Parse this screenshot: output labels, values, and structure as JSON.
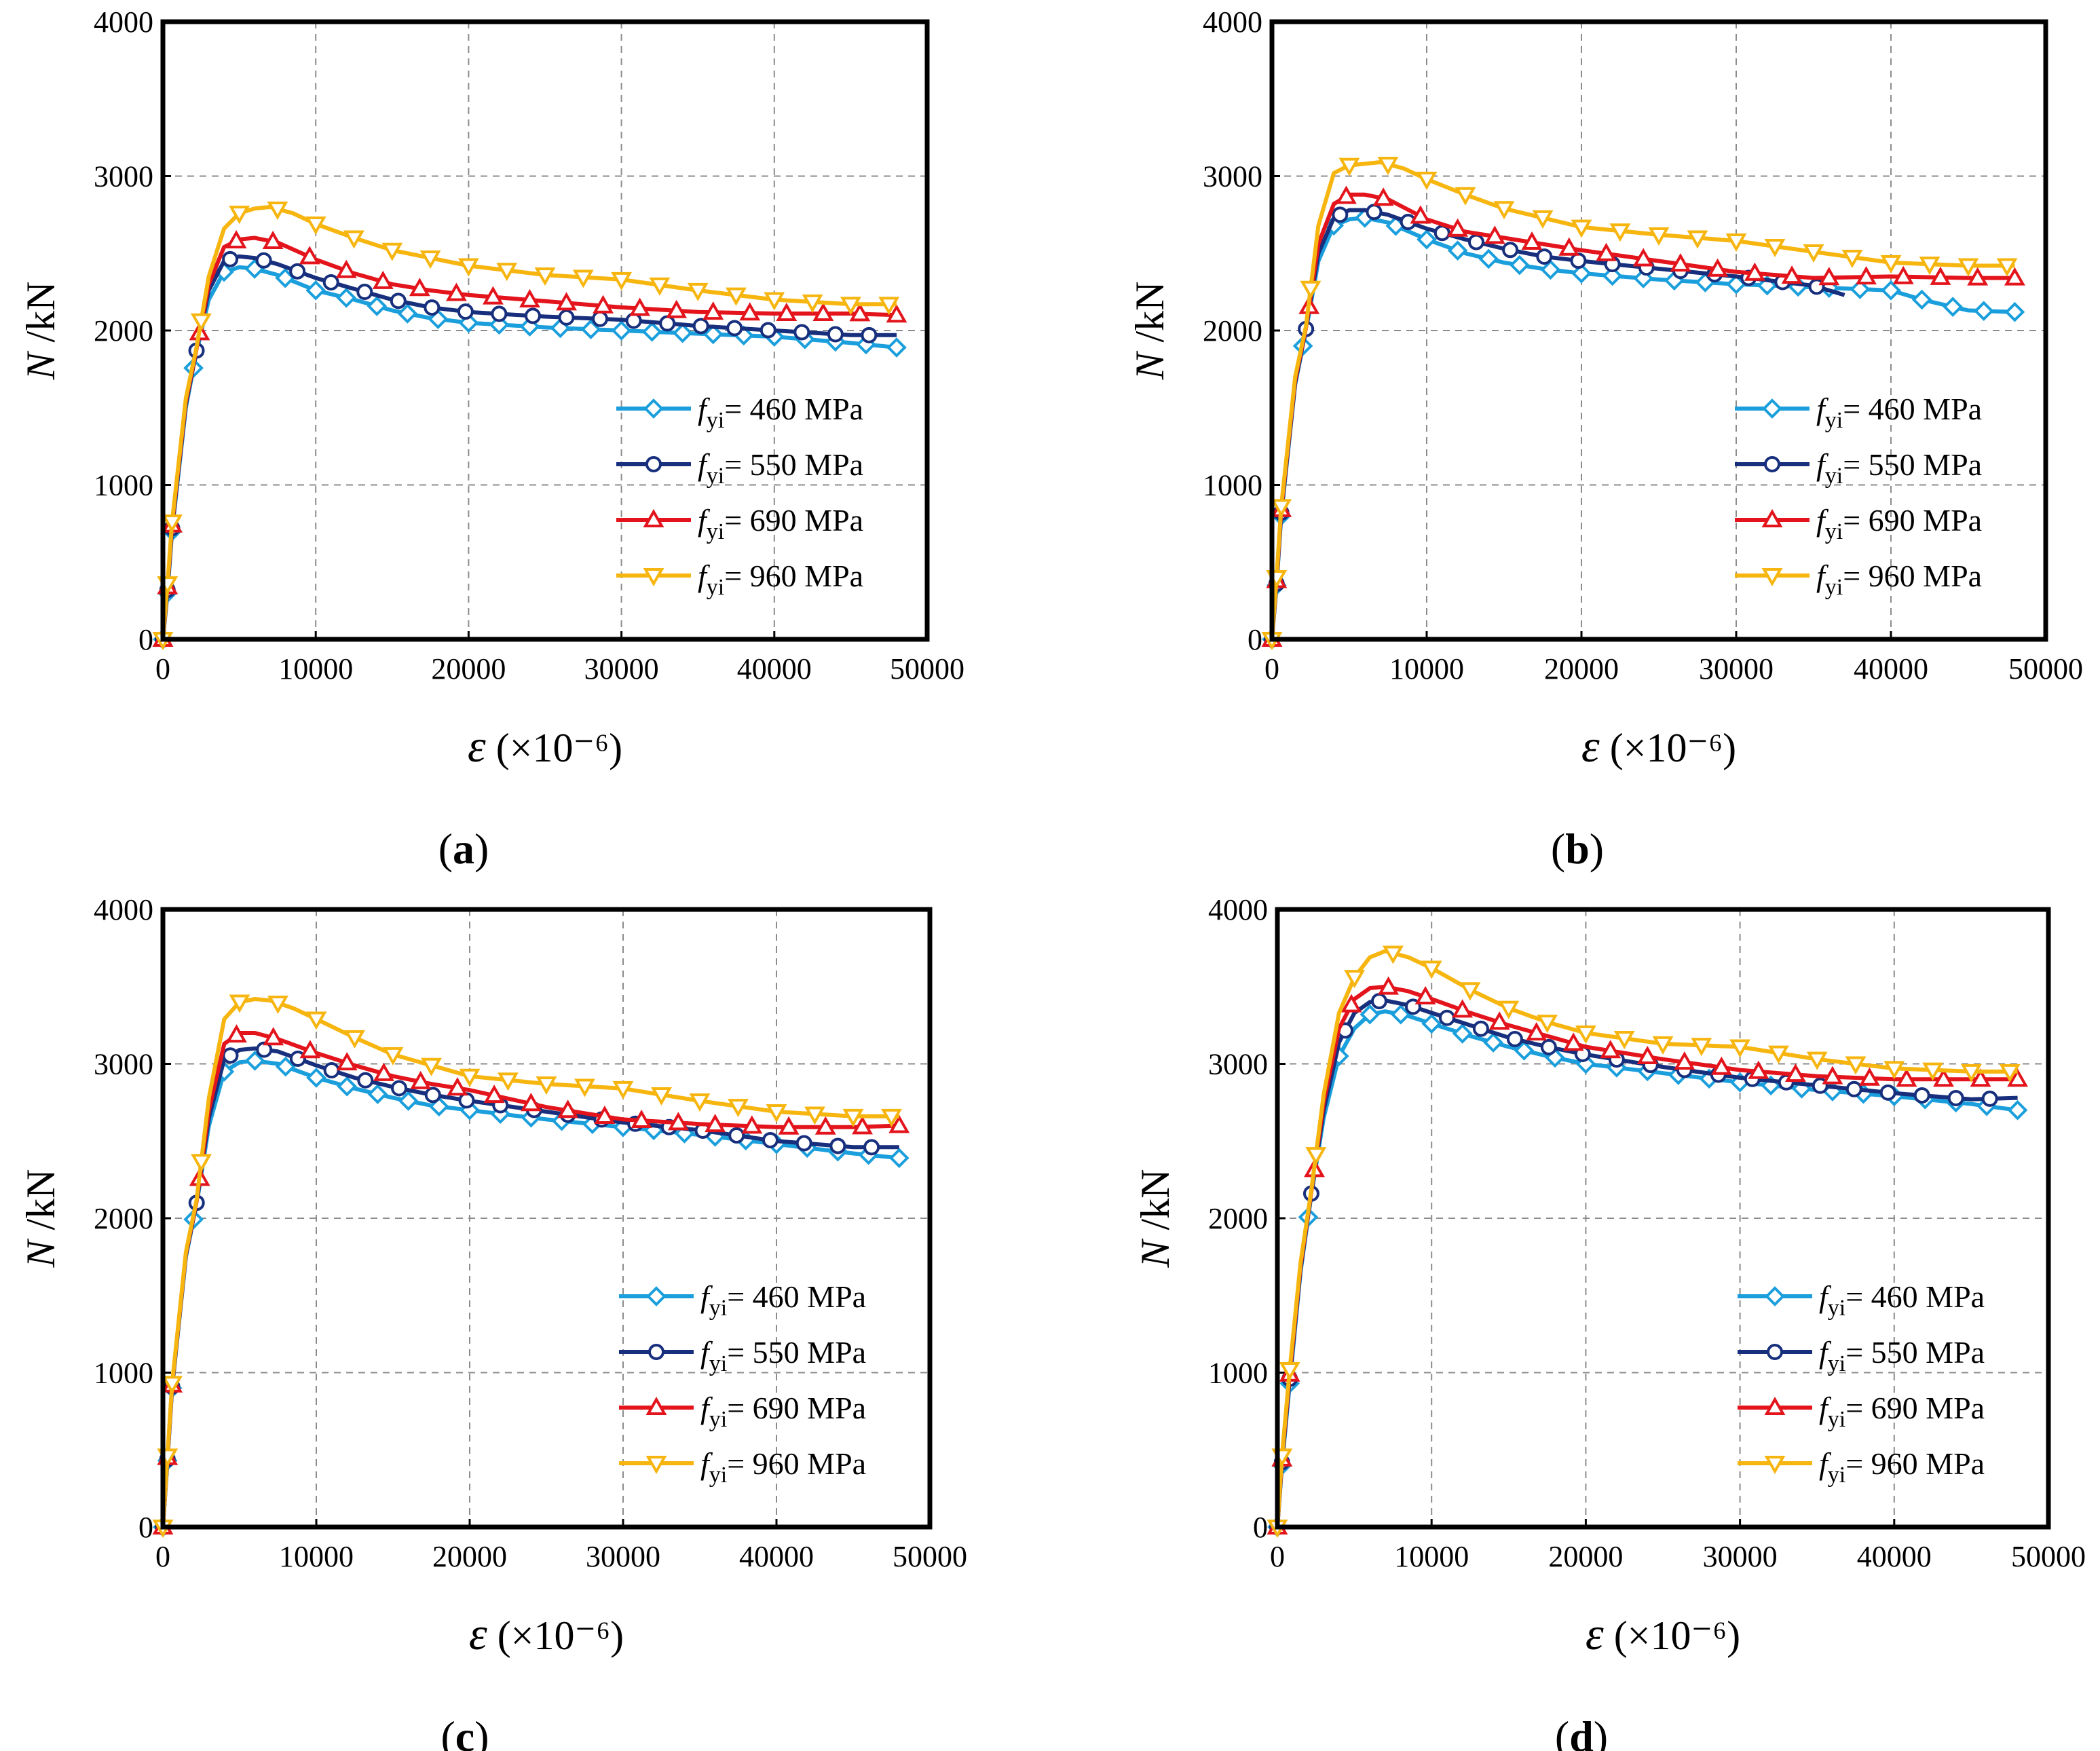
{
  "figure": {
    "series_styles": [
      {
        "color": "#1a9fdc",
        "marker": "diamond"
      },
      {
        "color": "#172f7c",
        "marker": "circle"
      },
      {
        "color": "#e3141c",
        "marker": "triangle-up"
      },
      {
        "color": "#f7b50f",
        "marker": "triangle-down"
      }
    ]
  },
  "chart_data": [
    {
      "type": "line",
      "panel": "a",
      "caption": "(a)",
      "xlabel": "ε (×10⁻⁶)",
      "ylabel": "N /kN",
      "xlim": [
        0,
        50000
      ],
      "ylim": [
        0,
        4000
      ],
      "xticks": [
        0,
        10000,
        20000,
        30000,
        40000,
        50000
      ],
      "yticks": [
        0,
        1000,
        2000,
        3000,
        4000
      ],
      "grid": true,
      "legend_position": "lower-right",
      "series": [
        {
          "name": "f_yi = 460 MPa",
          "legend_label": "fyi= 460 MPa",
          "marker_step": 2000,
          "x": [
            0,
            300,
            600,
            1500,
            2200,
            3000,
            4000,
            5000,
            6000,
            7500,
            10000,
            12500,
            15000,
            17500,
            20000,
            25000,
            30000,
            35000,
            40000,
            45000,
            48000
          ],
          "y": [
            0,
            300,
            700,
            1500,
            1860,
            2200,
            2380,
            2410,
            2400,
            2360,
            2260,
            2200,
            2130,
            2080,
            2050,
            2020,
            2000,
            1980,
            1960,
            1920,
            1890
          ]
        },
        {
          "name": "f_yi = 550 MPa",
          "legend_label": "fyi= 550 MPa",
          "marker_step": 2200,
          "x": [
            0,
            300,
            600,
            1500,
            2200,
            3000,
            4000,
            5000,
            6000,
            7500,
            10000,
            12500,
            15000,
            17500,
            20000,
            25000,
            30000,
            35000,
            40000,
            45000,
            48000
          ],
          "y": [
            0,
            320,
            720,
            1520,
            1870,
            2260,
            2450,
            2480,
            2470,
            2430,
            2340,
            2270,
            2200,
            2150,
            2120,
            2090,
            2070,
            2030,
            2000,
            1970,
            1970
          ]
        },
        {
          "name": "f_yi = 690 MPa",
          "legend_label": "fyi= 690 MPa",
          "marker_step": 2400,
          "x": [
            0,
            300,
            600,
            1500,
            2200,
            3000,
            4000,
            5000,
            6000,
            7500,
            10000,
            12500,
            15000,
            17500,
            20000,
            25000,
            30000,
            35000,
            40000,
            45000,
            48000
          ],
          "y": [
            0,
            340,
            740,
            1540,
            1880,
            2300,
            2540,
            2590,
            2600,
            2570,
            2460,
            2370,
            2300,
            2260,
            2230,
            2190,
            2150,
            2120,
            2110,
            2110,
            2100
          ]
        },
        {
          "name": "f_yi = 960 MPa",
          "legend_label": "fyi= 960 MPa",
          "marker_step": 2500,
          "x": [
            0,
            300,
            600,
            1500,
            2200,
            3000,
            4000,
            5000,
            6000,
            7000,
            8500,
            10000,
            12500,
            15000,
            17500,
            20000,
            25000,
            30000,
            35000,
            40000,
            45000,
            48000
          ],
          "y": [
            0,
            360,
            760,
            1560,
            1890,
            2350,
            2660,
            2760,
            2790,
            2800,
            2760,
            2690,
            2600,
            2520,
            2470,
            2420,
            2360,
            2330,
            2260,
            2200,
            2170,
            2170
          ]
        }
      ]
    },
    {
      "type": "line",
      "panel": "b",
      "caption": "(b)",
      "xlabel": "ε (×10⁻⁶)",
      "ylabel": "N /kN",
      "xlim": [
        0,
        50000
      ],
      "ylim": [
        0,
        4000
      ],
      "xticks": [
        0,
        10000,
        20000,
        30000,
        40000,
        50000
      ],
      "yticks": [
        0,
        1000,
        2000,
        3000,
        4000
      ],
      "grid": true,
      "legend_position": "lower-right",
      "series": [
        {
          "name": "f_yi = 460 MPa",
          "legend_label": "fyi= 460 MPa",
          "marker_step": 2000,
          "x": [
            0,
            300,
            600,
            1500,
            2200,
            3000,
            4000,
            5000,
            6000,
            7500,
            10000,
            12500,
            15000,
            17500,
            20000,
            25000,
            30000,
            35000,
            40000,
            42000,
            45000,
            48000
          ],
          "y": [
            0,
            350,
            800,
            1650,
            2000,
            2450,
            2680,
            2720,
            2730,
            2700,
            2590,
            2500,
            2440,
            2400,
            2370,
            2330,
            2300,
            2280,
            2260,
            2200,
            2130,
            2120
          ]
        },
        {
          "name": "f_yi = 550 MPa",
          "legend_label": "fyi= 550 MPa",
          "marker_step": 2200,
          "x": [
            0,
            300,
            600,
            1500,
            2200,
            3000,
            4000,
            5000,
            6000,
            7500,
            10000,
            12500,
            15000,
            17500,
            20000,
            25000,
            30000,
            35000,
            37000
          ],
          "y": [
            0,
            360,
            820,
            1660,
            2010,
            2500,
            2730,
            2780,
            2780,
            2750,
            2660,
            2590,
            2530,
            2480,
            2450,
            2400,
            2350,
            2290,
            2230
          ]
        },
        {
          "name": "f_yi = 690 MPa",
          "legend_label": "fyi= 690 MPa",
          "marker_step": 2400,
          "x": [
            0,
            300,
            600,
            1500,
            2200,
            3000,
            4000,
            5000,
            6000,
            7500,
            10000,
            12500,
            15000,
            17500,
            20000,
            25000,
            30000,
            35000,
            40000,
            45000,
            48000
          ],
          "y": [
            0,
            380,
            840,
            1680,
            2020,
            2560,
            2820,
            2880,
            2880,
            2850,
            2720,
            2640,
            2600,
            2560,
            2520,
            2450,
            2380,
            2340,
            2350,
            2340,
            2340
          ]
        },
        {
          "name": "f_yi = 960 MPa",
          "legend_label": "fyi= 960 MPa",
          "marker_step": 2500,
          "x": [
            0,
            300,
            600,
            1500,
            2200,
            3000,
            4000,
            5000,
            6000,
            7000,
            8500,
            10000,
            12500,
            15000,
            17500,
            20000,
            25000,
            30000,
            35000,
            40000,
            45000,
            48000
          ],
          "y": [
            0,
            400,
            860,
            1700,
            2030,
            2680,
            3020,
            3070,
            3080,
            3090,
            3050,
            2980,
            2880,
            2790,
            2730,
            2670,
            2620,
            2580,
            2510,
            2440,
            2420,
            2420
          ]
        }
      ]
    },
    {
      "type": "line",
      "panel": "c",
      "caption": "(c)",
      "xlabel": "ε (×10⁻⁶)",
      "ylabel": "N /kN",
      "xlim": [
        0,
        50000
      ],
      "ylim": [
        0,
        4000
      ],
      "xticks": [
        0,
        10000,
        20000,
        30000,
        40000,
        50000
      ],
      "yticks": [
        0,
        1000,
        2000,
        3000,
        4000
      ],
      "grid": true,
      "legend_position": "lower-right",
      "series": [
        {
          "name": "f_yi = 460 MPa",
          "legend_label": "fyi= 460 MPa",
          "marker_step": 2000,
          "x": [
            0,
            300,
            600,
            1500,
            2200,
            3000,
            4000,
            5000,
            6000,
            7500,
            10000,
            12500,
            15000,
            17500,
            20000,
            25000,
            30000,
            35000,
            40000,
            45000,
            48000
          ],
          "y": [
            0,
            430,
            900,
            1750,
            2090,
            2600,
            2950,
            3010,
            3020,
            3000,
            2910,
            2840,
            2780,
            2730,
            2700,
            2640,
            2590,
            2540,
            2480,
            2420,
            2390
          ]
        },
        {
          "name": "f_yi = 550 MPa",
          "legend_label": "fyi= 550 MPa",
          "marker_step": 2200,
          "x": [
            0,
            300,
            600,
            1500,
            2200,
            3000,
            4000,
            5000,
            6000,
            7500,
            10000,
            12500,
            15000,
            17500,
            20000,
            25000,
            30000,
            35000,
            40000,
            45000,
            48000
          ],
          "y": [
            0,
            440,
            910,
            1760,
            2100,
            2650,
            3030,
            3090,
            3100,
            3080,
            2990,
            2910,
            2850,
            2800,
            2760,
            2690,
            2620,
            2570,
            2500,
            2460,
            2460
          ]
        },
        {
          "name": "f_yi = 690 MPa",
          "legend_label": "fyi= 690 MPa",
          "marker_step": 2400,
          "x": [
            0,
            300,
            600,
            1500,
            2200,
            3000,
            4000,
            5000,
            6000,
            7500,
            10000,
            12500,
            15000,
            17500,
            20000,
            25000,
            30000,
            35000,
            40000,
            45000,
            48000
          ],
          "y": [
            0,
            450,
            920,
            1770,
            2110,
            2700,
            3130,
            3200,
            3200,
            3160,
            3070,
            2990,
            2920,
            2870,
            2830,
            2720,
            2640,
            2610,
            2590,
            2590,
            2600
          ]
        },
        {
          "name": "f_yi = 960 MPa",
          "legend_label": "fyi= 960 MPa",
          "marker_step": 2500,
          "x": [
            0,
            300,
            600,
            1500,
            2200,
            3000,
            4000,
            5000,
            6000,
            7000,
            8500,
            10000,
            12500,
            15000,
            17500,
            20000,
            25000,
            30000,
            35000,
            40000,
            45000,
            48000
          ],
          "y": [
            0,
            460,
            930,
            1780,
            2120,
            2780,
            3290,
            3400,
            3420,
            3410,
            3360,
            3290,
            3170,
            3060,
            2990,
            2920,
            2870,
            2840,
            2760,
            2690,
            2660,
            2660
          ]
        }
      ]
    },
    {
      "type": "line",
      "panel": "d",
      "caption": "(d)",
      "xlabel": "ε (×10⁻⁶)",
      "ylabel": "N /kN",
      "xlim": [
        0,
        50000
      ],
      "ylim": [
        0,
        4000
      ],
      "xticks": [
        0,
        10000,
        20000,
        30000,
        40000,
        50000
      ],
      "yticks": [
        0,
        1000,
        2000,
        3000,
        4000
      ],
      "grid": true,
      "legend_position": "lower-right",
      "series": [
        {
          "name": "f_yi = 460 MPa",
          "legend_label": "fyi= 460 MPa",
          "marker_step": 2000,
          "x": [
            0,
            300,
            800,
            1500,
            2200,
            3000,
            4000,
            5000,
            6000,
            7000,
            8500,
            10000,
            12500,
            15000,
            17500,
            20000,
            25000,
            30000,
            35000,
            40000,
            45000,
            48000
          ],
          "y": [
            0,
            400,
            930,
            1650,
            2150,
            2650,
            3050,
            3230,
            3320,
            3340,
            3310,
            3260,
            3180,
            3110,
            3050,
            3000,
            2940,
            2880,
            2830,
            2790,
            2740,
            2700
          ]
        },
        {
          "name": "f_yi = 550 MPa",
          "legend_label": "fyi= 550 MPa",
          "marker_step": 2200,
          "x": [
            0,
            300,
            800,
            1500,
            2200,
            3000,
            4000,
            5000,
            6000,
            7000,
            8500,
            10000,
            12500,
            15000,
            17500,
            20000,
            25000,
            30000,
            35000,
            40000,
            45000,
            48000
          ],
          "y": [
            0,
            420,
            960,
            1670,
            2160,
            2700,
            3140,
            3330,
            3400,
            3410,
            3380,
            3330,
            3250,
            3170,
            3110,
            3060,
            2980,
            2910,
            2860,
            2810,
            2770,
            2780
          ]
        },
        {
          "name": "f_yi = 690 MPa",
          "legend_label": "fyi= 690 MPa",
          "marker_step": 2400,
          "x": [
            0,
            300,
            800,
            1500,
            2200,
            3000,
            4000,
            5000,
            6000,
            7000,
            8500,
            10000,
            12500,
            15000,
            17500,
            20000,
            25000,
            30000,
            35000,
            40000,
            45000,
            48000
          ],
          "y": [
            0,
            440,
            990,
            1690,
            2170,
            2750,
            3230,
            3420,
            3490,
            3500,
            3470,
            3420,
            3330,
            3250,
            3180,
            3110,
            3030,
            2960,
            2920,
            2900,
            2900,
            2900
          ]
        },
        {
          "name": "f_yi = 960 MPa",
          "legend_label": "fyi= 960 MPa",
          "marker_step": 2500,
          "x": [
            0,
            300,
            800,
            1500,
            2200,
            3000,
            4000,
            5000,
            6000,
            7000,
            8500,
            10000,
            12500,
            15000,
            17500,
            20000,
            25000,
            30000,
            35000,
            40000,
            45000,
            48000
          ],
          "y": [
            0,
            460,
            1020,
            1710,
            2180,
            2800,
            3330,
            3560,
            3690,
            3730,
            3690,
            3620,
            3480,
            3360,
            3270,
            3200,
            3130,
            3110,
            3030,
            2970,
            2950,
            2950
          ]
        }
      ]
    }
  ]
}
